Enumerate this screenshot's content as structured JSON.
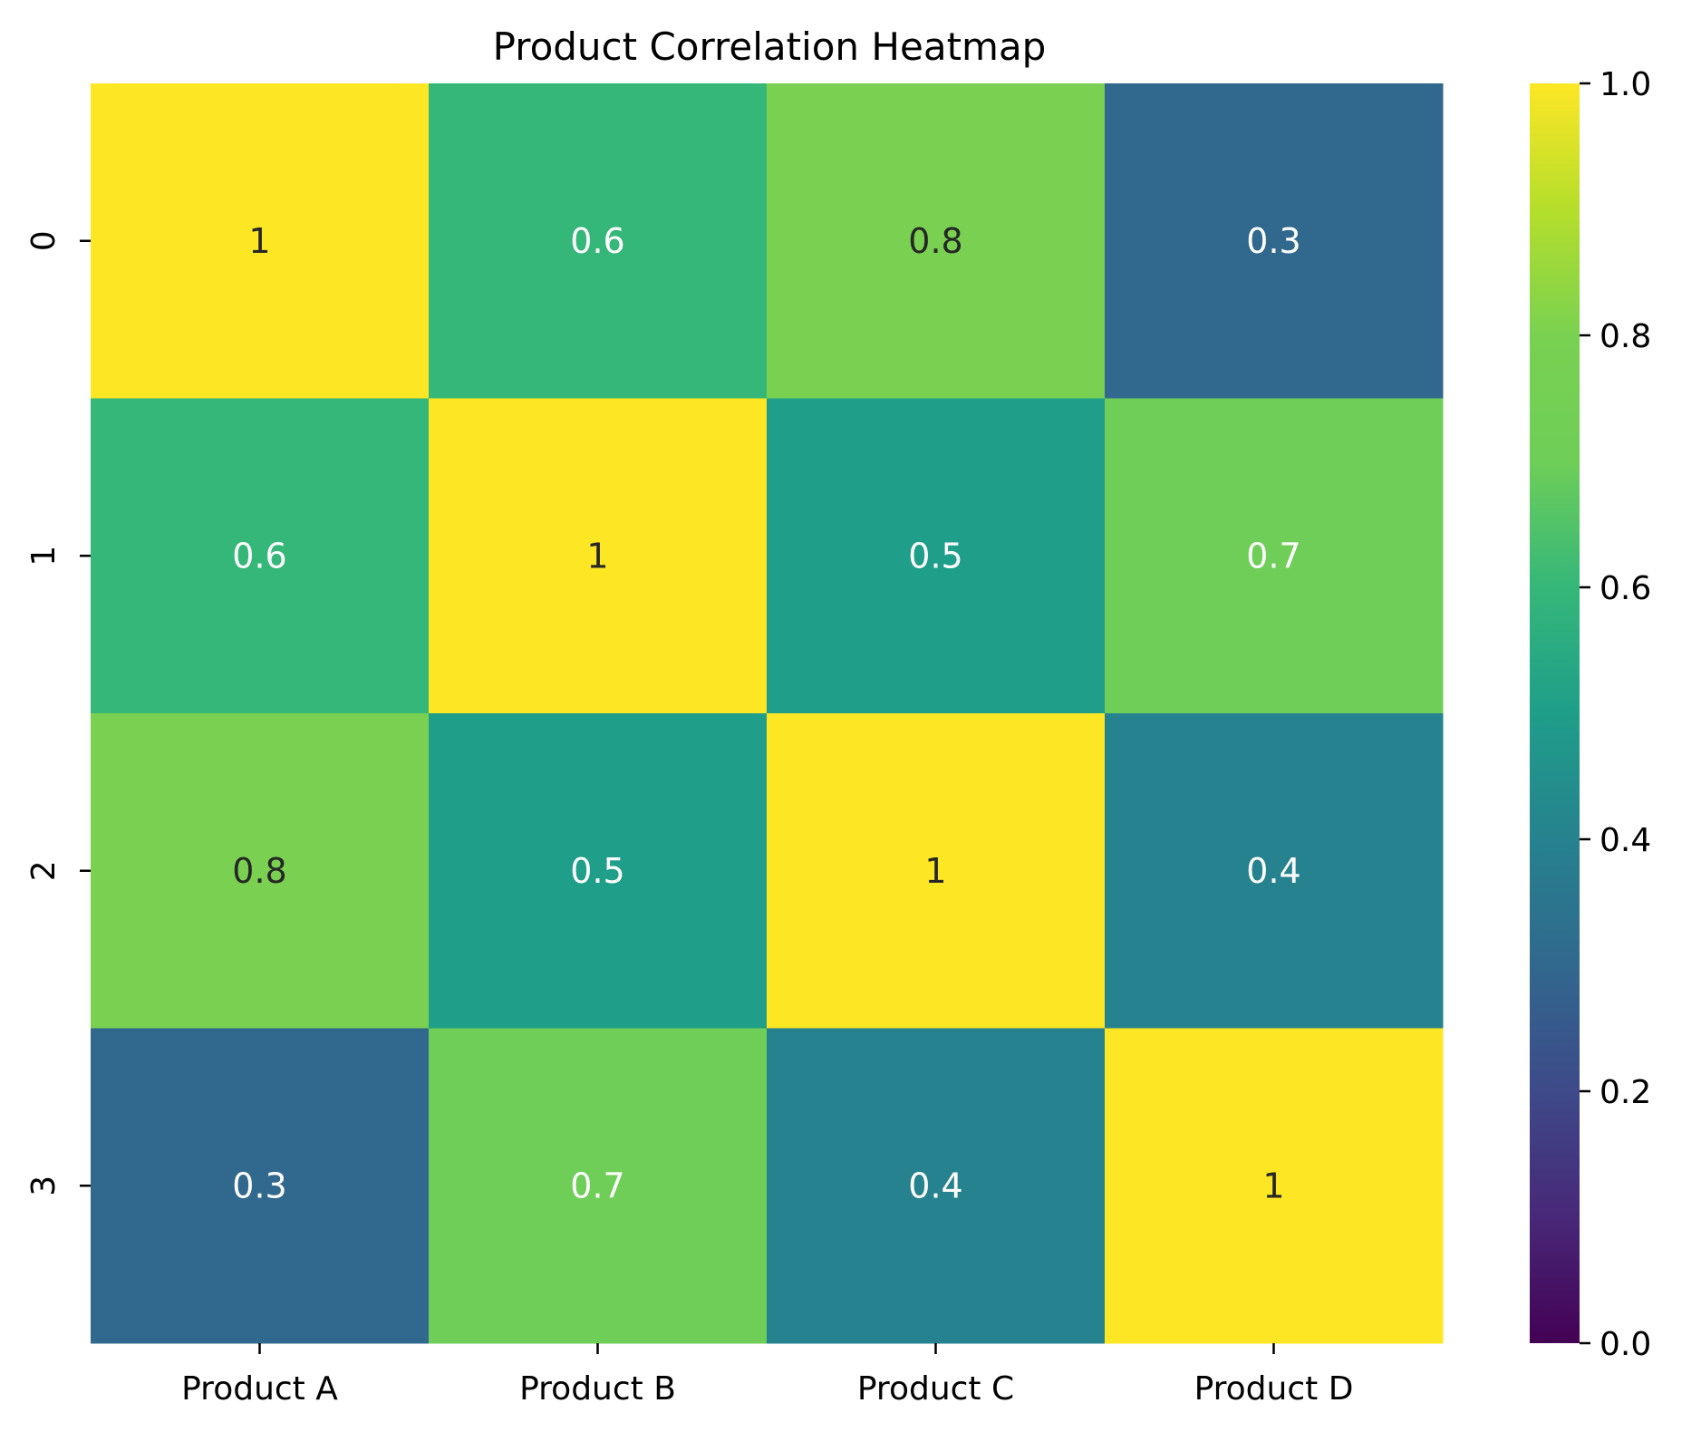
{
  "chart_data": {
    "type": "heatmap",
    "title": "Product Correlation Heatmap",
    "xlabel": "",
    "ylabel": "",
    "x_categories": [
      "Product A",
      "Product B",
      "Product C",
      "Product D"
    ],
    "y_categories": [
      "0",
      "1",
      "2",
      "3"
    ],
    "values": [
      [
        1,
        0.6,
        0.8,
        0.3
      ],
      [
        0.6,
        1,
        0.5,
        0.7
      ],
      [
        0.8,
        0.5,
        1,
        0.4
      ],
      [
        0.3,
        0.7,
        0.4,
        1
      ]
    ],
    "annotations": [
      [
        "1",
        "0.6",
        "0.8",
        "0.3"
      ],
      [
        "0.6",
        "1",
        "0.5",
        "0.7"
      ],
      [
        "0.8",
        "0.5",
        "1",
        "0.4"
      ],
      [
        "0.3",
        "0.7",
        "0.4",
        "1"
      ]
    ],
    "colormap": "viridis",
    "vmin": 0.0,
    "vmax": 1.0,
    "colorbar_ticks": [
      "0.0",
      "0.2",
      "0.4",
      "0.6",
      "0.8",
      "1.0"
    ],
    "grid": false,
    "colors": {
      "0.0": "#440154",
      "0.1": "#482878",
      "0.2": "#3e4a89",
      "0.3": "#31688e",
      "0.4": "#26828e",
      "0.5": "#1f9e89",
      "0.6": "#35b779",
      "0.7": "#6ece58",
      "0.8": "#7ad151",
      "0.9": "#b5de2b",
      "1.0": "#fde725"
    }
  }
}
